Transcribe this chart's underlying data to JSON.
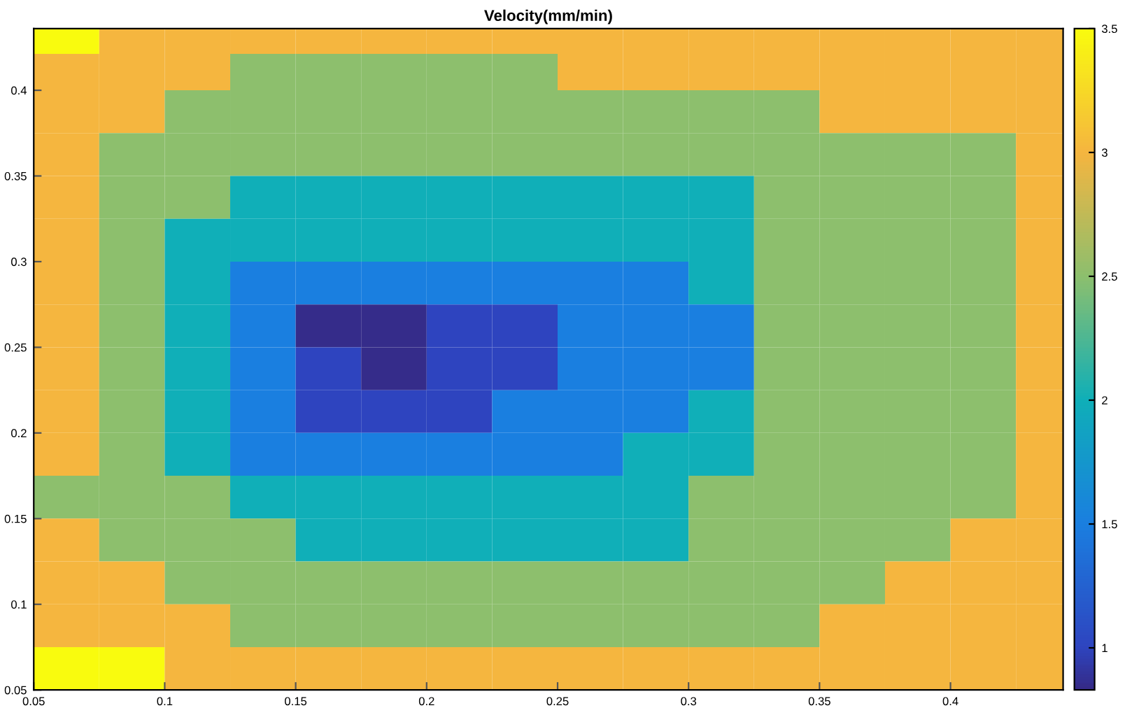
{
  "chart_data": {
    "type": "heatmap",
    "title": "Velocity(mm/min)",
    "x": [
      0.0625,
      0.0875,
      0.1125,
      0.1375,
      0.1625,
      0.1875,
      0.2125,
      0.2375,
      0.2625,
      0.2875,
      0.3125,
      0.3375,
      0.3625,
      0.3875,
      0.4125,
      0.4375
    ],
    "y": [
      0.43,
      0.4125,
      0.3875,
      0.3625,
      0.3375,
      0.3125,
      0.2875,
      0.2625,
      0.2375,
      0.2125,
      0.1875,
      0.1625,
      0.1375,
      0.1125,
      0.0875,
      0.0625
    ],
    "cells": [
      [
        3.5,
        3,
        3,
        3,
        3,
        3,
        3,
        3,
        3,
        3,
        3,
        3,
        3,
        3,
        3,
        3
      ],
      [
        3,
        3,
        3,
        2.5,
        2.5,
        2.5,
        2.5,
        2.5,
        3,
        3,
        3,
        3,
        3,
        3,
        3,
        3
      ],
      [
        3,
        3,
        2.5,
        2.5,
        2.5,
        2.5,
        2.5,
        2.5,
        2.5,
        2.5,
        2.5,
        2.5,
        3,
        3,
        3,
        3
      ],
      [
        3,
        2.5,
        2.5,
        2.5,
        2.5,
        2.5,
        2.5,
        2.5,
        2.5,
        2.5,
        2.5,
        2.5,
        2.5,
        2.5,
        2.5,
        3
      ],
      [
        3,
        2.5,
        2.5,
        2,
        2,
        2,
        2,
        2,
        2,
        2,
        2,
        2.5,
        2.5,
        2.5,
        2.5,
        3
      ],
      [
        3,
        2.5,
        2,
        2,
        2,
        2,
        2,
        2,
        2,
        2,
        2,
        2.5,
        2.5,
        2.5,
        2.5,
        3
      ],
      [
        3,
        2.5,
        2,
        1.5,
        1.5,
        1.5,
        1.5,
        1.5,
        1.5,
        1.5,
        2,
        2.5,
        2.5,
        2.5,
        2.5,
        3
      ],
      [
        3,
        2.5,
        2,
        1.5,
        0.85,
        0.85,
        1,
        1,
        1.5,
        1.5,
        1.5,
        2.5,
        2.5,
        2.5,
        2.5,
        3
      ],
      [
        3,
        2.5,
        2,
        1.5,
        1,
        0.85,
        1,
        1,
        1.5,
        1.5,
        1.5,
        2.5,
        2.5,
        2.5,
        2.5,
        3
      ],
      [
        3,
        2.5,
        2,
        1.5,
        1,
        1,
        1,
        1.5,
        1.5,
        1.5,
        2,
        2.5,
        2.5,
        2.5,
        2.5,
        3
      ],
      [
        3,
        2.5,
        2,
        1.5,
        1.5,
        1.5,
        1.5,
        1.5,
        1.5,
        2,
        2,
        2.5,
        2.5,
        2.5,
        2.5,
        3
      ],
      [
        2.5,
        2.5,
        2.5,
        2,
        2,
        2,
        2,
        2,
        2,
        2,
        2.5,
        2.5,
        2.5,
        2.5,
        2.5,
        3
      ],
      [
        3,
        2.5,
        2.5,
        2.5,
        2,
        2,
        2,
        2,
        2,
        2,
        2.5,
        2.5,
        2.5,
        2.5,
        3,
        3
      ],
      [
        3,
        3,
        2.5,
        2.5,
        2.5,
        2.5,
        2.5,
        2.5,
        2.5,
        2.5,
        2.5,
        2.5,
        2.5,
        3,
        3,
        3
      ],
      [
        3,
        3,
        3,
        2.5,
        2.5,
        2.5,
        2.5,
        2.5,
        2.5,
        2.5,
        2.5,
        2.5,
        3,
        3,
        3,
        3
      ],
      [
        3.5,
        3.5,
        3,
        3,
        3,
        3,
        3,
        3,
        3,
        3,
        3,
        3,
        3,
        3,
        3,
        3
      ]
    ],
    "xlim": [
      0.05,
      0.443
    ],
    "ylim": [
      0.05,
      0.436
    ],
    "xticks": [
      0.05,
      0.1,
      0.15,
      0.2,
      0.25,
      0.3,
      0.35,
      0.4
    ],
    "yticks": [
      0.05,
      0.1,
      0.15,
      0.2,
      0.25,
      0.3,
      0.35,
      0.4
    ],
    "clim": [
      0.83,
      3.5
    ],
    "cticks": [
      1,
      1.5,
      2,
      2.5,
      3,
      3.5
    ],
    "grid": false
  }
}
